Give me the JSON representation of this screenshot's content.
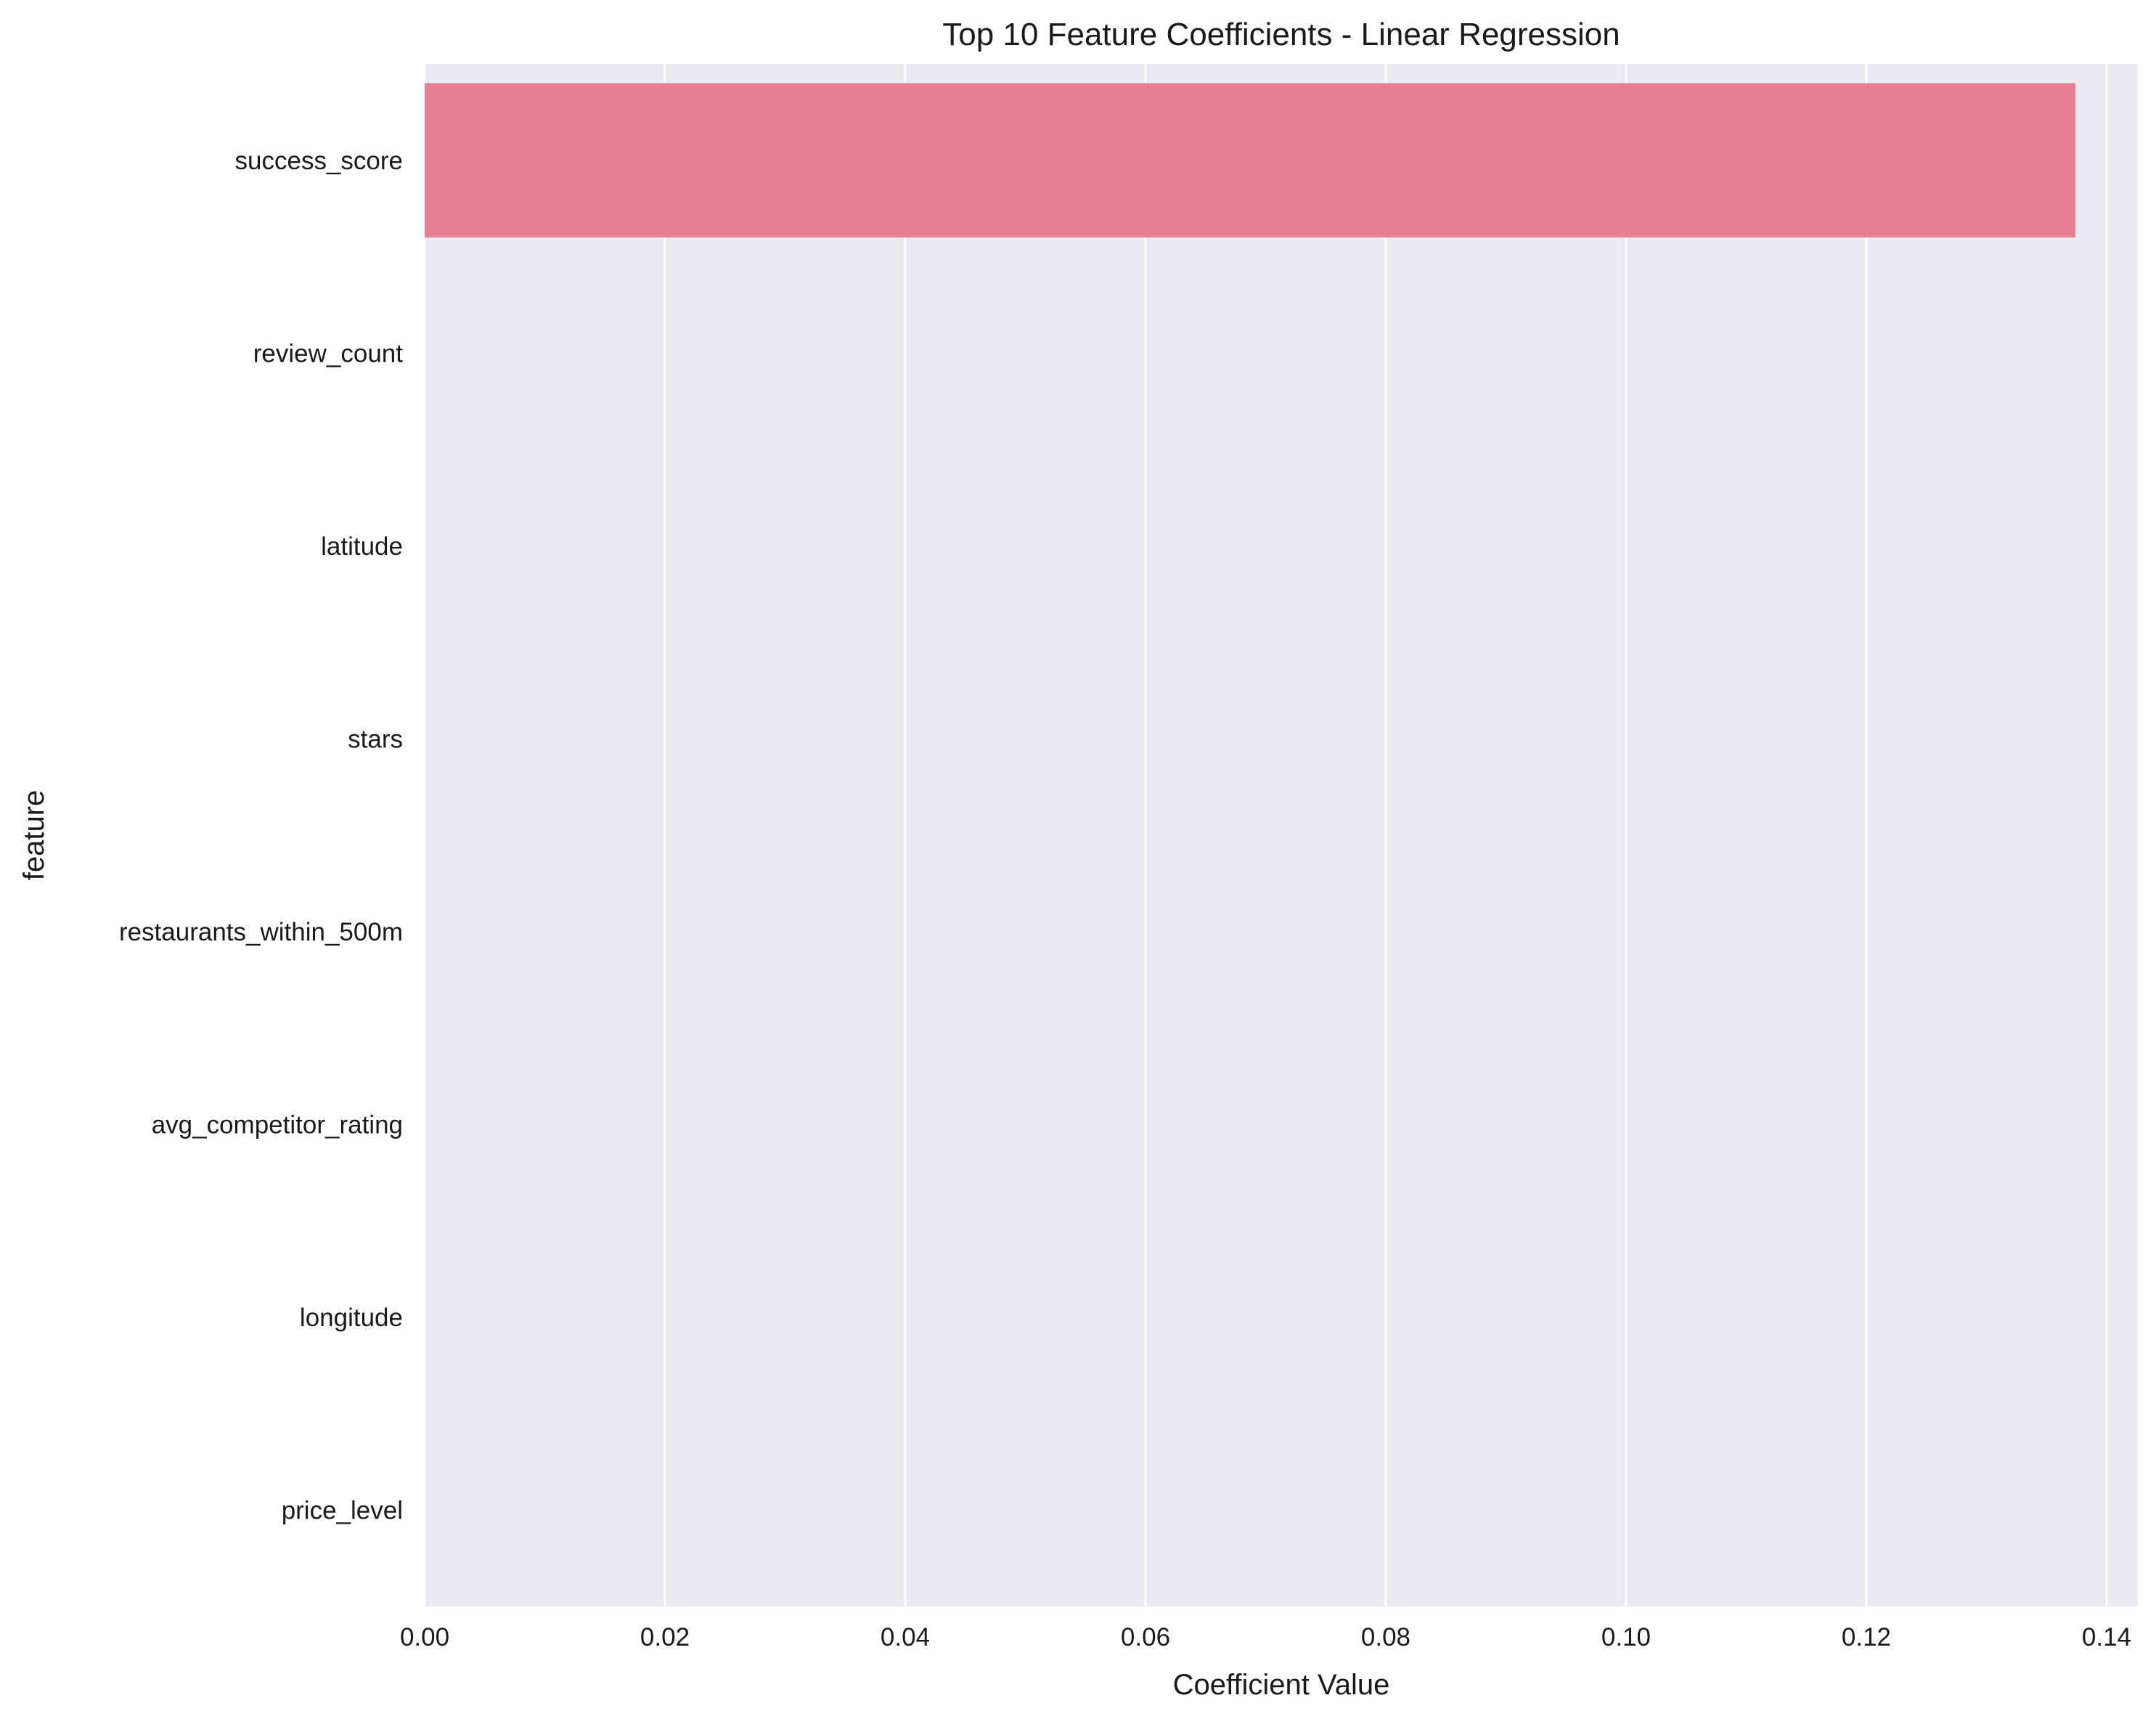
{
  "chart_data": {
    "type": "bar",
    "orientation": "horizontal",
    "title": "Top 10 Feature Coefficients - Linear Regression",
    "xlabel": "Coefficient Value",
    "ylabel": "feature",
    "categories": [
      "success_score",
      "review_count",
      "latitude",
      "stars",
      "restaurants_within_500m",
      "avg_competitor_rating",
      "longitude",
      "price_level"
    ],
    "values": [
      0.1374,
      0.0,
      0.0,
      0.0,
      0.0,
      0.0,
      0.0,
      0.0
    ],
    "xlim": [
      0.0,
      0.1426
    ],
    "xticks": [
      0.0,
      0.02,
      0.04,
      0.06,
      0.08,
      0.1,
      0.12,
      0.14
    ],
    "xtick_labels": [
      "0.00",
      "0.02",
      "0.04",
      "0.06",
      "0.08",
      "0.10",
      "0.12",
      "0.14"
    ],
    "grid": true,
    "bar_color": "#e77f92",
    "background_color": "#eaeaf2",
    "grid_color": "#ffffff"
  }
}
